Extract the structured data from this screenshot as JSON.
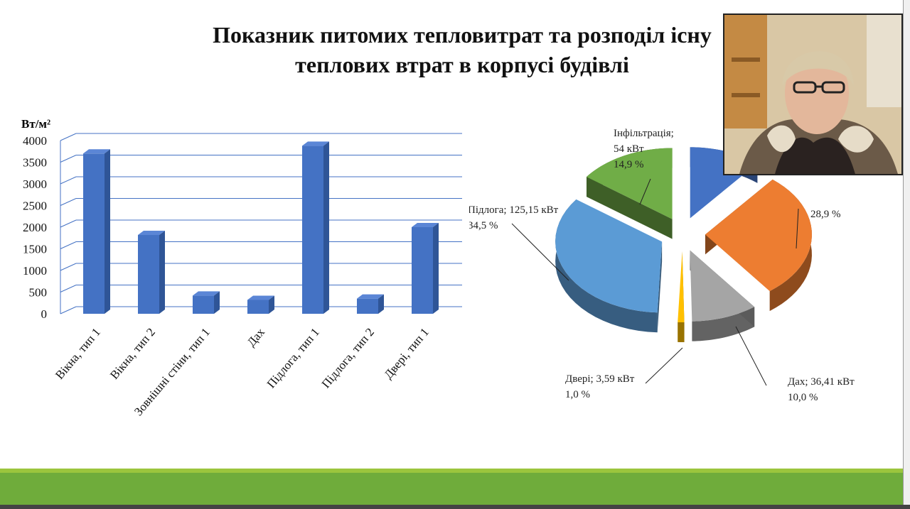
{
  "slide": {
    "title_line1": "Показник питомих тепловитрат та розподіл існу",
    "title_line2": "теплових втрат в корпусі будівлі"
  },
  "colors": {
    "bar": "#4472c4",
    "footer": "#6fac3b",
    "footer_line": "#9bc53d"
  },
  "chart_data": [
    {
      "type": "bar",
      "ylabel": "Вт/м²",
      "ylim": [
        0,
        4000
      ],
      "yticks": [
        0,
        500,
        1000,
        1500,
        2000,
        2500,
        3000,
        3500,
        4000
      ],
      "grid": true,
      "categories": [
        "Вікна, тип 1",
        "Вікна, тип 2",
        "Зовнішні стіни, тип 1",
        "Дах",
        "Підлога, тип 1",
        "Підлога, тип 2",
        "Двері, тип 1"
      ],
      "values": [
        3700,
        1820,
        420,
        320,
        3880,
        350,
        2000
      ]
    },
    {
      "type": "pie",
      "slices": [
        {
          "name": "Інфільтрація;",
          "value_text": "54 кВт",
          "percent_text": "14,9 %",
          "value": 54,
          "color": "#70ad47"
        },
        {
          "name": "",
          "value_text": "",
          "percent_text": "",
          "value": 39.5,
          "color": "#4472c4"
        },
        {
          "name": "",
          "value_text": "",
          "percent_text": "28,9 %",
          "value": 104.6,
          "color": "#ed7d31"
        },
        {
          "name": "Дах;",
          "value_text": "36,41 кВт",
          "percent_text": "10,0 %",
          "value": 36.41,
          "color": "#a5a5a5"
        },
        {
          "name": "Двері;",
          "value_text": "3,59 кВт",
          "percent_text": "1,0 %",
          "value": 3.59,
          "color": "#ffc000"
        },
        {
          "name": "Підлога;",
          "value_text": "125,15 кВт",
          "percent_text": "34,5 %",
          "value": 125.15,
          "color": "#5b9bd5"
        }
      ]
    }
  ]
}
